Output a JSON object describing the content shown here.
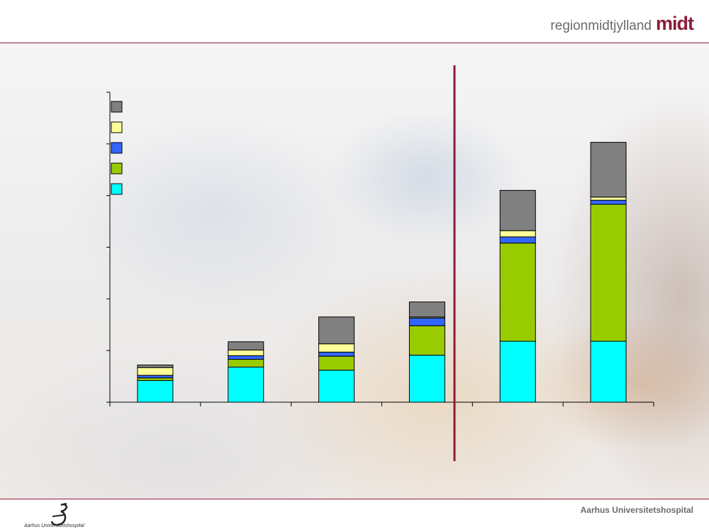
{
  "header": {
    "brand_text": "regionmidtjylland",
    "brand_mark": "midt"
  },
  "footer": {
    "hospital_name": "Aarhus Universitetshospital",
    "logo_caption": "Aarhus Universitetshospital"
  },
  "colors": {
    "accent": "#8c1d3c",
    "series": [
      "#00ffff",
      "#99cc00",
      "#3366ff",
      "#ffff99",
      "#808080"
    ]
  },
  "chart_data": {
    "type": "bar",
    "stacked": true,
    "title": "",
    "xlabel": "",
    "ylabel": "",
    "categories": [
      "",
      "",
      "",
      "",
      "",
      ""
    ],
    "ylim": [
      0,
      6
    ],
    "yticks": [
      0,
      1,
      2,
      3,
      4,
      5,
      6
    ],
    "grid": false,
    "legend_position": "top-left",
    "divider_after_category": 4,
    "series": [
      {
        "color": "#00ffff",
        "values": [
          0.42,
          0.68,
          0.62,
          0.91,
          1.18,
          1.18
        ]
      },
      {
        "color": "#99cc00",
        "values": [
          0.05,
          0.15,
          0.27,
          0.57,
          1.9,
          2.65
        ]
      },
      {
        "color": "#3366ff",
        "values": [
          0.05,
          0.07,
          0.08,
          0.15,
          0.12,
          0.08
        ]
      },
      {
        "color": "#ffff99",
        "values": [
          0.15,
          0.11,
          0.16,
          0.02,
          0.12,
          0.06
        ]
      },
      {
        "color": "#808080",
        "values": [
          0.05,
          0.16,
          0.52,
          0.29,
          0.78,
          1.06
        ]
      }
    ]
  }
}
